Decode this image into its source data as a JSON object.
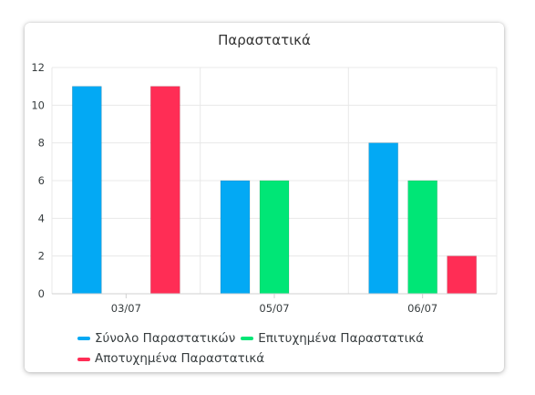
{
  "chart_data": {
    "type": "bar",
    "title": "Παραστατικά",
    "xlabel": "",
    "ylabel": "",
    "categories": [
      "03/07",
      "05/07",
      "06/07"
    ],
    "series": [
      {
        "name": "Σύνολο Παραστατικών",
        "values": [
          11,
          6,
          8
        ],
        "color": "#03a9f4"
      },
      {
        "name": "Επιτυχημένα Παραστατικά",
        "values": [
          0,
          6,
          6
        ],
        "color": "#00e676"
      },
      {
        "name": "Αποτυχημένα Παραστατικά",
        "values": [
          11,
          0,
          2
        ],
        "color": "#ff2d55"
      }
    ],
    "ylim": [
      0,
      12
    ],
    "yticks": [
      "0",
      "2",
      "4",
      "6",
      "8",
      "10",
      "12"
    ],
    "grid": true,
    "legend_position": "bottom"
  }
}
